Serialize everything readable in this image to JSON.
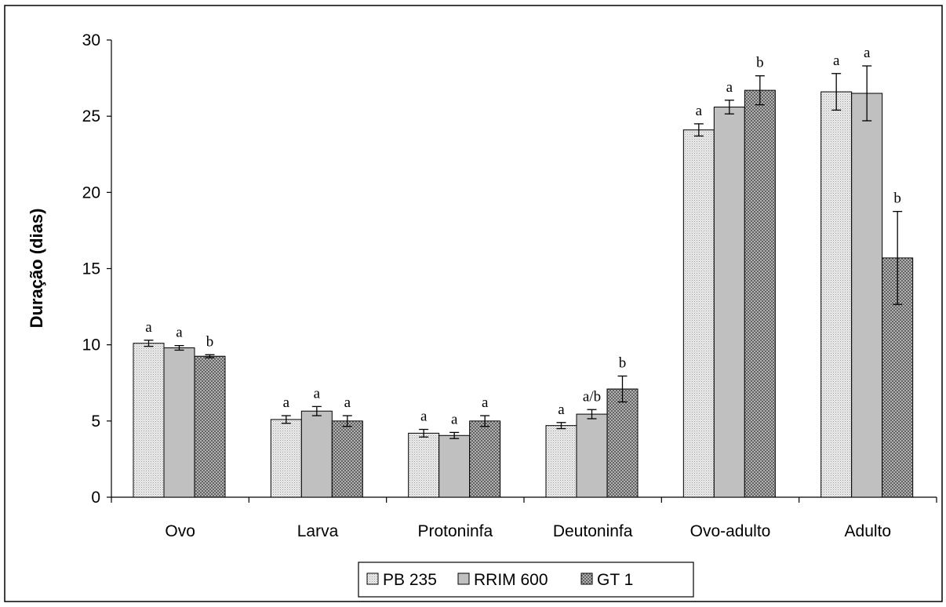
{
  "chart_data": {
    "type": "bar",
    "title": "",
    "xlabel": "",
    "ylabel": "Duração (dias)",
    "ylim": [
      0,
      30
    ],
    "yticks": [
      "0",
      "5",
      "10",
      "15",
      "20",
      "25",
      "30"
    ],
    "grid": false,
    "legend_position": "bottom",
    "categories": [
      "Ovo",
      "Larva",
      "Protoninfa",
      "Deutoninfa",
      "Ovo-adulto",
      "Adulto"
    ],
    "series": [
      {
        "name": "PB 235",
        "fill": "#e4e4e4",
        "pattern": "fine-dots",
        "values": [
          10.1,
          5.1,
          4.2,
          4.7,
          24.1,
          26.6
        ],
        "errors": [
          0.2,
          0.25,
          0.25,
          0.2,
          0.4,
          1.2
        ],
        "sig": [
          "a",
          "a",
          "a",
          "a",
          "a",
          "a"
        ]
      },
      {
        "name": "RRIM 600",
        "fill": "#c0c0c0",
        "pattern": "solid",
        "values": [
          9.8,
          5.65,
          4.05,
          5.45,
          25.6,
          26.5
        ],
        "errors": [
          0.15,
          0.3,
          0.2,
          0.3,
          0.45,
          1.8
        ],
        "sig": [
          "a",
          "a",
          "a",
          "a/b",
          "a",
          "a"
        ]
      },
      {
        "name": "GT 1",
        "fill": "#b0b0b0",
        "pattern": "crosshatch",
        "values": [
          9.25,
          5.0,
          5.0,
          7.1,
          26.7,
          15.7
        ],
        "errors": [
          0.1,
          0.35,
          0.35,
          0.85,
          0.95,
          3.05
        ],
        "sig": [
          "b",
          "a",
          "a",
          "b",
          "b",
          "b"
        ]
      }
    ]
  }
}
